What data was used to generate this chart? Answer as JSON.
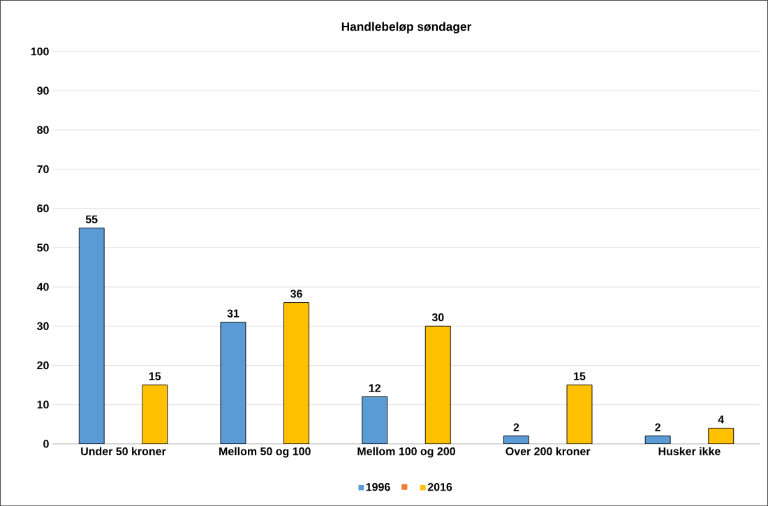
{
  "chart_data": {
    "type": "bar",
    "title": "Handlebeløp søndager",
    "categories": [
      "Under 50 kroner",
      "Mellom 50 og 100",
      "Mellom 100 og 200",
      "Over 200 kroner",
      "Husker ikke"
    ],
    "series": [
      {
        "name": "1996",
        "color": "#5b9bd5",
        "values": [
          55,
          31,
          12,
          2,
          2
        ]
      },
      {
        "color": "#ed7d31",
        "values": [
          null,
          null,
          null,
          null,
          null
        ]
      },
      {
        "name": "2016",
        "color": "#ffc000",
        "values": [
          15,
          36,
          30,
          15,
          4
        ]
      }
    ],
    "ylim": [
      0,
      100
    ],
    "yticks": [
      0,
      10,
      20,
      30,
      40,
      50,
      60,
      70,
      80,
      90,
      100
    ],
    "grid": "y",
    "legend": "bottom",
    "data_labels": true
  }
}
